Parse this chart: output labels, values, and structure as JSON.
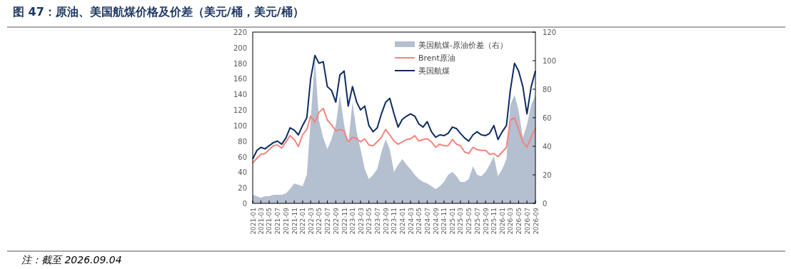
{
  "chart_data": {
    "type": "line",
    "title": "图 47：原油、美国航煤价格及价差（美元/桶，美元/桶）",
    "annotations": [
      "注：截至 2026.09.04"
    ],
    "x": [
      "2021-01",
      "2021-02",
      "2021-03",
      "2021-04",
      "2021-05",
      "2021-06",
      "2021-07",
      "2021-08",
      "2021-09",
      "2021-10",
      "2021-11",
      "2021-12",
      "2022-01",
      "2022-02",
      "2022-03",
      "2022-04",
      "2022-05",
      "2022-06",
      "2022-07",
      "2022-08",
      "2022-09",
      "2022-10",
      "2022-11",
      "2022-12",
      "2023-01",
      "2023-02",
      "2023-03",
      "2023-04",
      "2023-05",
      "2023-06",
      "2023-07",
      "2023-08",
      "2023-09",
      "2023-10",
      "2023-11",
      "2023-12",
      "2024-01",
      "2024-02",
      "2024-03",
      "2024-04",
      "2024-05",
      "2024-06",
      "2024-07",
      "2024-08",
      "2024-09",
      "2024-10",
      "2024-11",
      "2024-12",
      "2025-01",
      "2025-02",
      "2025-03",
      "2025-04",
      "2025-05",
      "2025-06",
      "2025-07",
      "2025-08",
      "2025-09",
      "2025-10",
      "2025-11",
      "2025-12",
      "2026-01",
      "2026-02",
      "2026-03",
      "2026-04",
      "2026-05",
      "2026-06",
      "2026-07",
      "2026-08",
      "2026-09"
    ],
    "xlim": [
      "2021-01",
      "2026-09"
    ],
    "xticks": [
      "2021-01",
      "2021-03",
      "2021-05",
      "2021-07",
      "2021-09",
      "2021-11",
      "2022-01",
      "2022-03",
      "2022-05",
      "2022-07",
      "2022-09",
      "2022-11",
      "2023-01",
      "2023-03",
      "2023-05",
      "2023-07",
      "2023-09",
      "2023-11",
      "2024-01",
      "2024-03",
      "2024-05",
      "2024-07",
      "2024-09",
      "2024-11",
      "2025-01",
      "2025-03",
      "2025-05",
      "2025-07",
      "2025-09",
      "2025-11",
      "2026-01",
      "2026-03",
      "2026-05",
      "2026-07",
      "2026-09"
    ],
    "ylim": [
      0,
      220
    ],
    "yticks": [
      0,
      20,
      40,
      60,
      80,
      100,
      120,
      140,
      160,
      180,
      200,
      220
    ],
    "y2lim": [
      0,
      120
    ],
    "y2ticks": [
      0,
      20,
      40,
      60,
      80,
      100,
      120
    ],
    "legend": "top right",
    "series": [
      {
        "name": "美国航煤-原油价差（右）",
        "type": "area",
        "axis": "y2",
        "color": "#b4bfd0",
        "values": [
          6,
          5,
          4,
          5,
          5,
          6,
          6,
          6,
          7,
          10,
          14,
          13,
          12,
          20,
          58,
          102,
          58,
          46,
          38,
          45,
          55,
          76,
          55,
          41,
          71,
          50,
          38,
          24,
          17,
          20,
          24,
          36,
          45,
          38,
          22,
          27,
          31,
          27,
          24,
          20,
          17,
          15,
          14,
          12,
          10,
          12,
          15,
          20,
          22,
          19,
          15,
          15,
          17,
          26,
          20,
          19,
          22,
          27,
          33,
          19,
          24,
          31,
          69,
          76,
          65,
          46,
          55,
          69,
          76
        ]
      },
      {
        "name": "Brent原油",
        "color": "#f4837d",
        "values": [
          52,
          58,
          63,
          64,
          69,
          74,
          75,
          71,
          79,
          87,
          82,
          73,
          88,
          95,
          112,
          104,
          117,
          122,
          107,
          101,
          93,
          95,
          93,
          79,
          85,
          83,
          79,
          83,
          75,
          74,
          79,
          85,
          95,
          88,
          80,
          76,
          79,
          82,
          83,
          87,
          80,
          82,
          83,
          79,
          72,
          76,
          74,
          74,
          82,
          76,
          74,
          66,
          64,
          72,
          69,
          68,
          68,
          63,
          64,
          60,
          66,
          72,
          107,
          110,
          95,
          79,
          72,
          85,
          96
        ]
      },
      {
        "name": "美国航煤",
        "color": "#0d2b62",
        "values": [
          57,
          68,
          72,
          70,
          74,
          78,
          80,
          76,
          84,
          97,
          94,
          88,
          100,
          110,
          160,
          190,
          180,
          182,
          150,
          145,
          130,
          165,
          170,
          125,
          150,
          130,
          120,
          125,
          100,
          92,
          97,
          115,
          130,
          135,
          115,
          98,
          108,
          112,
          115,
          112,
          102,
          98,
          105,
          92,
          85,
          88,
          87,
          90,
          98,
          96,
          90,
          84,
          80,
          88,
          92,
          88,
          87,
          90,
          100,
          82,
          92,
          100,
          145,
          180,
          170,
          150,
          115,
          150,
          170
        ]
      }
    ]
  }
}
